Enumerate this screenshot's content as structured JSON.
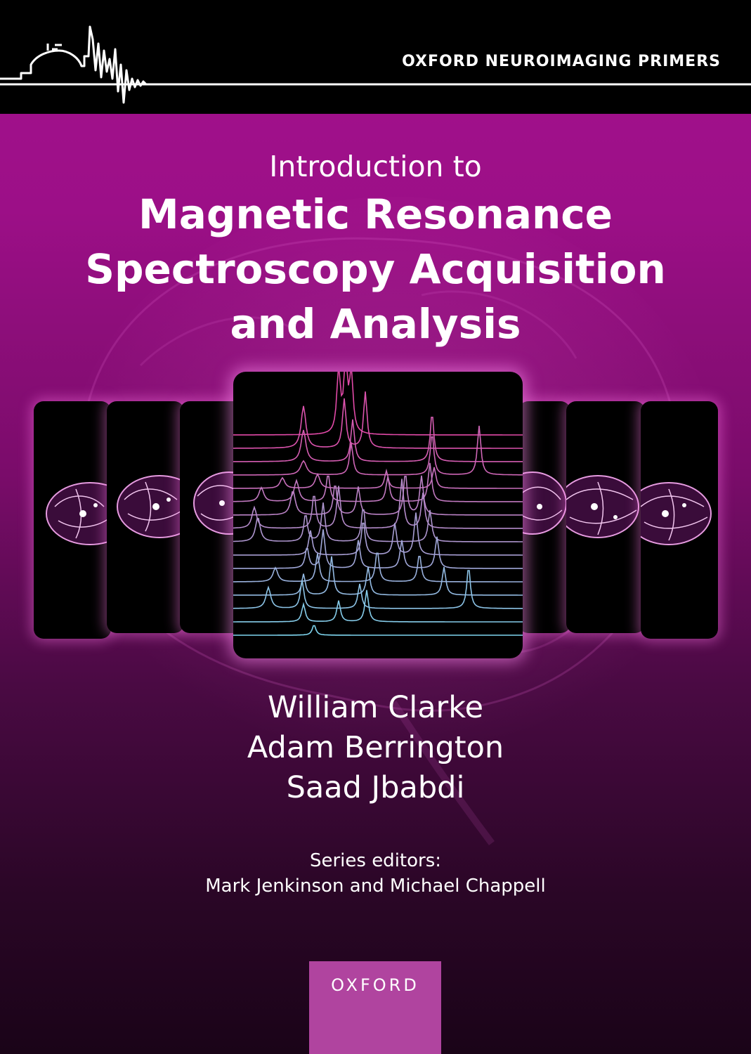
{
  "series": {
    "name": "OXFORD NEUROIMAGING PRIMERS"
  },
  "title": {
    "intro": "Introduction to",
    "line1": "Magnetic Resonance",
    "line2": "Spectroscopy Acquisition",
    "line3": "and Analysis"
  },
  "authors": [
    "William Clarke",
    "Adam Berrington",
    "Saad Jbabdi"
  ],
  "editors": {
    "label": "Series editors:",
    "names": "Mark Jenkinson and Michael Chappell"
  },
  "publisher": {
    "name": "OXFORD",
    "color": "#b0449f"
  },
  "colors": {
    "background_top": "#a4128e",
    "background_bottom": "#1a0418",
    "topbar": "#000000",
    "spectrum_pink": "#e24aa8",
    "spectrum_cyan": "#7fd6f0"
  },
  "icons": {
    "logo": "radcliffe-dome-waveform-icon"
  }
}
